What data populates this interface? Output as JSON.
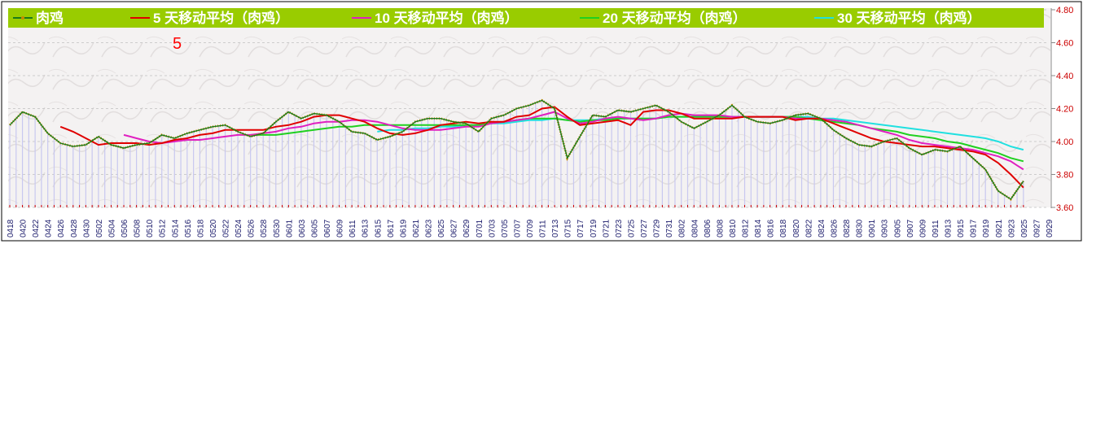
{
  "chart_data": {
    "type": "line",
    "title": "",
    "xlabel": "",
    "ylabel": "",
    "annotation": "5",
    "ylim": [
      3.6,
      4.8
    ],
    "y_ticks": [
      "3.60",
      "3.80",
      "4.00",
      "4.20",
      "4.40",
      "4.60",
      "4.80"
    ],
    "grid": true,
    "legend_position": "top",
    "x_tick_labels": [
      "0418",
      "0420",
      "0422",
      "0424",
      "0426",
      "0428",
      "0430",
      "0502",
      "0504",
      "0506",
      "0508",
      "0510",
      "0512",
      "0514",
      "0516",
      "0518",
      "0520",
      "0522",
      "0524",
      "0526",
      "0528",
      "0530",
      "0601",
      "0603",
      "0605",
      "0607",
      "0609",
      "0611",
      "0613",
      "0615",
      "0617",
      "0619",
      "0621",
      "0623",
      "0625",
      "0627",
      "0629",
      "0701",
      "0703",
      "0705",
      "0707",
      "0709",
      "0711",
      "0713",
      "0715",
      "0717",
      "0719",
      "0721",
      "0723",
      "0725",
      "0727",
      "0729",
      "0731",
      "0802",
      "0804",
      "0806",
      "0808",
      "0810",
      "0812",
      "0814",
      "0816",
      "0818",
      "0820",
      "0822",
      "0824",
      "0826",
      "0828",
      "0830",
      "0901",
      "0903",
      "0905",
      "0907",
      "0909",
      "0911",
      "0913",
      "0915",
      "0917",
      "0919",
      "0921",
      "0923",
      "0925",
      "0927",
      "0929"
    ],
    "series": [
      {
        "name": "肉鸡",
        "color": "#1a7a1a",
        "values": [
          4.1,
          4.18,
          4.15,
          4.05,
          3.99,
          3.97,
          3.98,
          4.03,
          3.98,
          3.96,
          3.98,
          3.99,
          4.04,
          4.02,
          4.05,
          4.07,
          4.09,
          4.1,
          4.06,
          4.03,
          4.05,
          4.12,
          4.18,
          4.14,
          4.17,
          4.16,
          4.12,
          4.06,
          4.05,
          4.01,
          4.03,
          4.06,
          4.12,
          4.14,
          4.14,
          4.12,
          4.11,
          4.06,
          4.14,
          4.16,
          4.2,
          4.22,
          4.25,
          4.2,
          3.9,
          4.03,
          4.16,
          4.15,
          4.19,
          4.18,
          4.2,
          4.22,
          4.18,
          4.12,
          4.08,
          4.12,
          4.16,
          4.22,
          4.15,
          4.12,
          4.11,
          4.13,
          4.16,
          4.17,
          4.14,
          4.07,
          4.02,
          3.98,
          3.97,
          4.0,
          4.02,
          3.96,
          3.92,
          3.95,
          3.94,
          3.97,
          3.9,
          3.83,
          3.7,
          3.65,
          3.76
        ]
      },
      {
        "name": "5 天移动平均（肉鸡）",
        "color": "#e00000",
        "values": [
          null,
          null,
          null,
          null,
          4.09,
          4.06,
          4.02,
          3.98,
          3.99,
          3.99,
          3.99,
          3.98,
          3.99,
          4.01,
          4.02,
          4.04,
          4.05,
          4.07,
          4.07,
          4.07,
          4.07,
          4.09,
          4.1,
          4.12,
          4.15,
          4.16,
          4.16,
          4.14,
          4.12,
          4.08,
          4.05,
          4.04,
          4.05,
          4.07,
          4.1,
          4.11,
          4.12,
          4.11,
          4.12,
          4.12,
          4.15,
          4.16,
          4.2,
          4.21,
          4.15,
          4.1,
          4.11,
          4.12,
          4.13,
          4.1,
          4.18,
          4.19,
          4.19,
          4.17,
          4.14,
          4.14,
          4.14,
          4.14,
          4.15,
          4.15,
          4.15,
          4.15,
          4.13,
          4.14,
          4.14,
          4.11,
          4.08,
          4.05,
          4.02,
          4.0,
          3.99,
          3.98,
          3.97,
          3.97,
          3.96,
          3.95,
          3.94,
          3.92,
          3.87,
          3.8,
          3.72
        ]
      },
      {
        "name": "10 天移动平均（肉鸡）",
        "color": "#e020c0",
        "values": [
          null,
          null,
          null,
          null,
          null,
          null,
          null,
          null,
          null,
          4.04,
          4.02,
          4.0,
          3.99,
          4.0,
          4.01,
          4.01,
          4.02,
          4.03,
          4.04,
          4.04,
          4.05,
          4.06,
          4.08,
          4.09,
          4.11,
          4.12,
          4.12,
          4.13,
          4.13,
          4.12,
          4.1,
          4.08,
          4.07,
          4.07,
          4.07,
          4.08,
          4.09,
          4.09,
          4.11,
          4.12,
          4.13,
          4.14,
          4.16,
          4.18,
          4.14,
          4.11,
          4.12,
          4.14,
          4.15,
          4.14,
          4.13,
          4.14,
          4.16,
          4.17,
          4.16,
          4.16,
          4.16,
          4.15,
          4.15,
          4.15,
          4.15,
          4.15,
          4.14,
          4.14,
          4.14,
          4.13,
          4.12,
          4.1,
          4.08,
          4.06,
          4.04,
          4.01,
          3.99,
          3.98,
          3.97,
          3.96,
          3.95,
          3.93,
          3.91,
          3.88,
          3.83
        ]
      },
      {
        "name": "20 天移动平均（肉鸡）",
        "color": "#20d020",
        "values": [
          null,
          null,
          null,
          null,
          null,
          null,
          null,
          null,
          null,
          null,
          null,
          null,
          null,
          null,
          null,
          null,
          null,
          null,
          null,
          4.04,
          4.04,
          4.04,
          4.05,
          4.06,
          4.07,
          4.08,
          4.09,
          4.09,
          4.1,
          4.1,
          4.1,
          4.1,
          4.1,
          4.1,
          4.1,
          4.1,
          4.1,
          4.1,
          4.11,
          4.12,
          4.13,
          4.14,
          4.14,
          4.14,
          4.13,
          4.12,
          4.13,
          4.13,
          4.14,
          4.14,
          4.14,
          4.14,
          4.15,
          4.15,
          4.15,
          4.15,
          4.15,
          4.15,
          4.15,
          4.15,
          4.15,
          4.15,
          4.15,
          4.14,
          4.13,
          4.12,
          4.11,
          4.1,
          4.08,
          4.07,
          4.06,
          4.04,
          4.03,
          4.02,
          4.0,
          3.99,
          3.97,
          3.95,
          3.93,
          3.9,
          3.88
        ]
      },
      {
        "name": "30 天移动平均（肉鸡）",
        "color": "#20e0e0",
        "values": [
          null,
          null,
          null,
          null,
          null,
          null,
          null,
          null,
          null,
          null,
          null,
          null,
          null,
          null,
          null,
          null,
          null,
          null,
          null,
          null,
          null,
          null,
          null,
          null,
          null,
          null,
          null,
          null,
          null,
          4.06,
          4.07,
          4.07,
          4.08,
          4.08,
          4.09,
          4.09,
          4.1,
          4.1,
          4.11,
          4.11,
          4.12,
          4.13,
          4.13,
          4.14,
          4.13,
          4.13,
          4.13,
          4.14,
          4.14,
          4.14,
          4.14,
          4.14,
          4.15,
          4.15,
          4.15,
          4.15,
          4.15,
          4.15,
          4.15,
          4.15,
          4.15,
          4.15,
          4.15,
          4.15,
          4.14,
          4.14,
          4.13,
          4.12,
          4.11,
          4.1,
          4.09,
          4.08,
          4.07,
          4.06,
          4.05,
          4.04,
          4.03,
          4.02,
          4.0,
          3.97,
          3.95
        ]
      }
    ],
    "colors": {
      "legend_bar": "#99cc00",
      "axis_text": "#cc0000",
      "bars": "#c8c8f0",
      "grid": "#c0c0c0",
      "legend_text": "#ffffff",
      "annotation": "#ff0000"
    }
  }
}
